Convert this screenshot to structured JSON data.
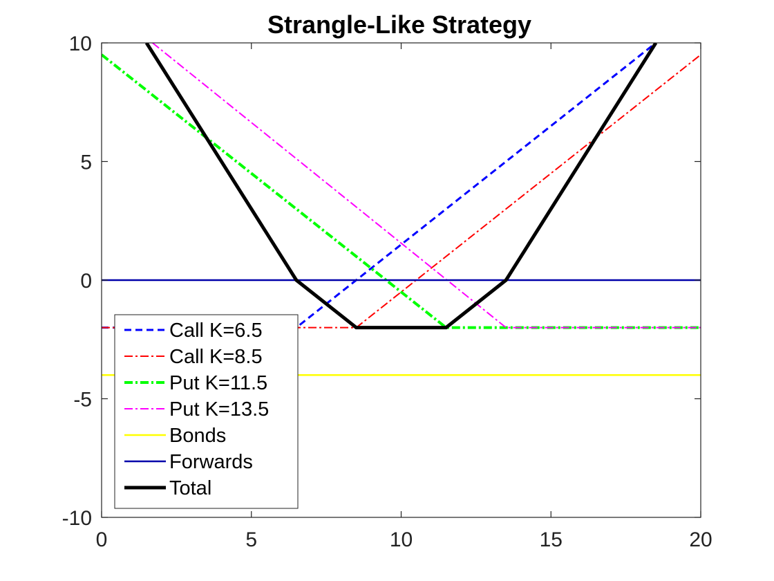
{
  "chart_data": {
    "type": "line",
    "title": "Strangle-Like Strategy",
    "xlabel": "",
    "ylabel": "",
    "xlim": [
      0,
      20
    ],
    "ylim": [
      -10,
      10
    ],
    "xticks": [
      0,
      5,
      10,
      15,
      20
    ],
    "yticks": [
      -10,
      -5,
      0,
      5,
      10
    ],
    "xtick_labels": [
      "0",
      "5",
      "10",
      "15",
      "20"
    ],
    "ytick_labels": [
      "-10",
      "-5",
      "0",
      "5",
      "10"
    ],
    "grid": false,
    "legend_position": "bottom-left",
    "series": [
      {
        "name": "Call K=6.5",
        "color": "#0000ff",
        "style": "dashed",
        "x": [
          0,
          6.5,
          18.5
        ],
        "y": [
          -2,
          -2,
          10
        ]
      },
      {
        "name": "Call K=8.5",
        "color": "#ff0000",
        "style": "dashdot",
        "x": [
          0,
          8.5,
          20
        ],
        "y": [
          -2,
          -2,
          9.5
        ]
      },
      {
        "name": "Put K=11.5",
        "color": "#00ff00",
        "style": "dashdot-thick",
        "x": [
          0,
          11.5,
          20
        ],
        "y": [
          9.5,
          -2,
          -2
        ]
      },
      {
        "name": "Put K=13.5",
        "color": "#ff00ff",
        "style": "dashdot",
        "x": [
          1.7,
          13.5,
          20
        ],
        "y": [
          10,
          -2,
          -2
        ]
      },
      {
        "name": "Bonds",
        "color": "#ffff00",
        "style": "solid",
        "x": [
          0,
          20
        ],
        "y": [
          -4,
          -4
        ]
      },
      {
        "name": "Forwards",
        "color": "#0000aa",
        "style": "solid",
        "x": [
          0,
          20
        ],
        "y": [
          0,
          0
        ]
      },
      {
        "name": "Total",
        "color": "#000000",
        "style": "solid-thick",
        "x": [
          1.5,
          6.5,
          8.5,
          11.5,
          13.5,
          18.5
        ],
        "y": [
          10,
          0,
          -2,
          -2,
          0,
          10
        ]
      }
    ]
  }
}
